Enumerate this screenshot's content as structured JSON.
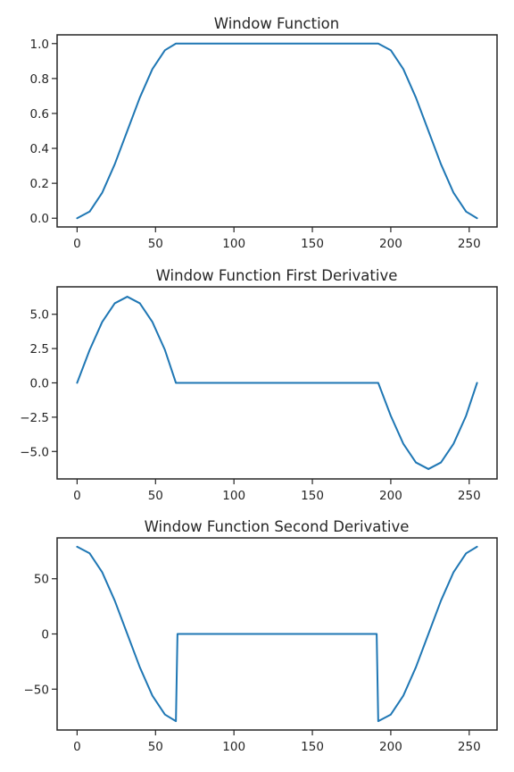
{
  "chart_data": [
    {
      "type": "line",
      "title": "Window Function",
      "xlabel": "",
      "ylabel": "",
      "xlim": [
        -12.75,
        267.75
      ],
      "ylim": [
        -0.05,
        1.05
      ],
      "xticks": [
        0,
        50,
        100,
        150,
        200,
        250
      ],
      "xtick_labels": [
        "0",
        "50",
        "100",
        "150",
        "200",
        "250"
      ],
      "yticks": [
        0.0,
        0.2,
        0.4,
        0.6,
        0.8,
        1.0
      ],
      "ytick_labels": [
        "0.0",
        "0.2",
        "0.4",
        "0.6",
        "0.8",
        "1.0"
      ],
      "grid": false,
      "series": [
        {
          "color": "#1f77b4",
          "x": [
            0,
            8,
            16,
            24,
            32,
            40,
            48,
            56,
            63,
            64,
            100,
            150,
            191,
            192,
            200,
            208,
            216,
            224,
            232,
            240,
            248,
            255
          ],
          "y": [
            0.0,
            0.038,
            0.146,
            0.309,
            0.5,
            0.691,
            0.854,
            0.962,
            1.0,
            1.0,
            1.0,
            1.0,
            1.0,
            1.0,
            0.962,
            0.854,
            0.691,
            0.5,
            0.309,
            0.146,
            0.038,
            0.0
          ]
        }
      ]
    },
    {
      "type": "line",
      "title": "Window Function First Derivative",
      "xlabel": "",
      "ylabel": "",
      "xlim": [
        -12.75,
        267.75
      ],
      "ylim": [
        -7.0,
        7.0
      ],
      "xticks": [
        0,
        50,
        100,
        150,
        200,
        250
      ],
      "xtick_labels": [
        "0",
        "50",
        "100",
        "150",
        "200",
        "250"
      ],
      "yticks": [
        -5.0,
        -2.5,
        0.0,
        2.5,
        5.0
      ],
      "ytick_labels": [
        "−5.0",
        "−2.5",
        "0.0",
        "2.5",
        "5.0"
      ],
      "grid": false,
      "series": [
        {
          "color": "#1f77b4",
          "x": [
            0,
            8,
            16,
            24,
            32,
            40,
            48,
            56,
            63,
            64,
            100,
            150,
            191,
            192,
            200,
            208,
            216,
            224,
            232,
            240,
            248,
            255
          ],
          "y": [
            0.0,
            2.4,
            4.44,
            5.8,
            6.28,
            5.8,
            4.44,
            2.4,
            0.0,
            0.0,
            0.0,
            0.0,
            0.0,
            0.0,
            -2.4,
            -4.44,
            -5.8,
            -6.28,
            -5.8,
            -4.44,
            -2.4,
            0.0
          ]
        }
      ]
    },
    {
      "type": "line",
      "title": "Window Function Second Derivative",
      "xlabel": "",
      "ylabel": "",
      "xlim": [
        -12.75,
        267.75
      ],
      "ylim": [
        -87.0,
        87.0
      ],
      "xticks": [
        0,
        50,
        100,
        150,
        200,
        250
      ],
      "xtick_labels": [
        "0",
        "50",
        "100",
        "150",
        "200",
        "250"
      ],
      "yticks": [
        -50,
        0,
        50
      ],
      "ytick_labels": [
        "−50",
        "0",
        "50"
      ],
      "grid": false,
      "series": [
        {
          "color": "#1f77b4",
          "x": [
            0,
            8,
            16,
            24,
            32,
            40,
            48,
            56,
            63,
            64,
            100,
            150,
            191,
            192,
            200,
            208,
            216,
            224,
            232,
            240,
            248,
            255
          ],
          "y": [
            79.0,
            73.0,
            55.9,
            30.2,
            0.0,
            -30.2,
            -55.9,
            -73.0,
            -79.0,
            0.0,
            0.0,
            0.0,
            0.0,
            -79.0,
            -73.0,
            -55.9,
            -30.2,
            0.0,
            30.2,
            55.9,
            73.0,
            79.0
          ]
        }
      ]
    }
  ]
}
